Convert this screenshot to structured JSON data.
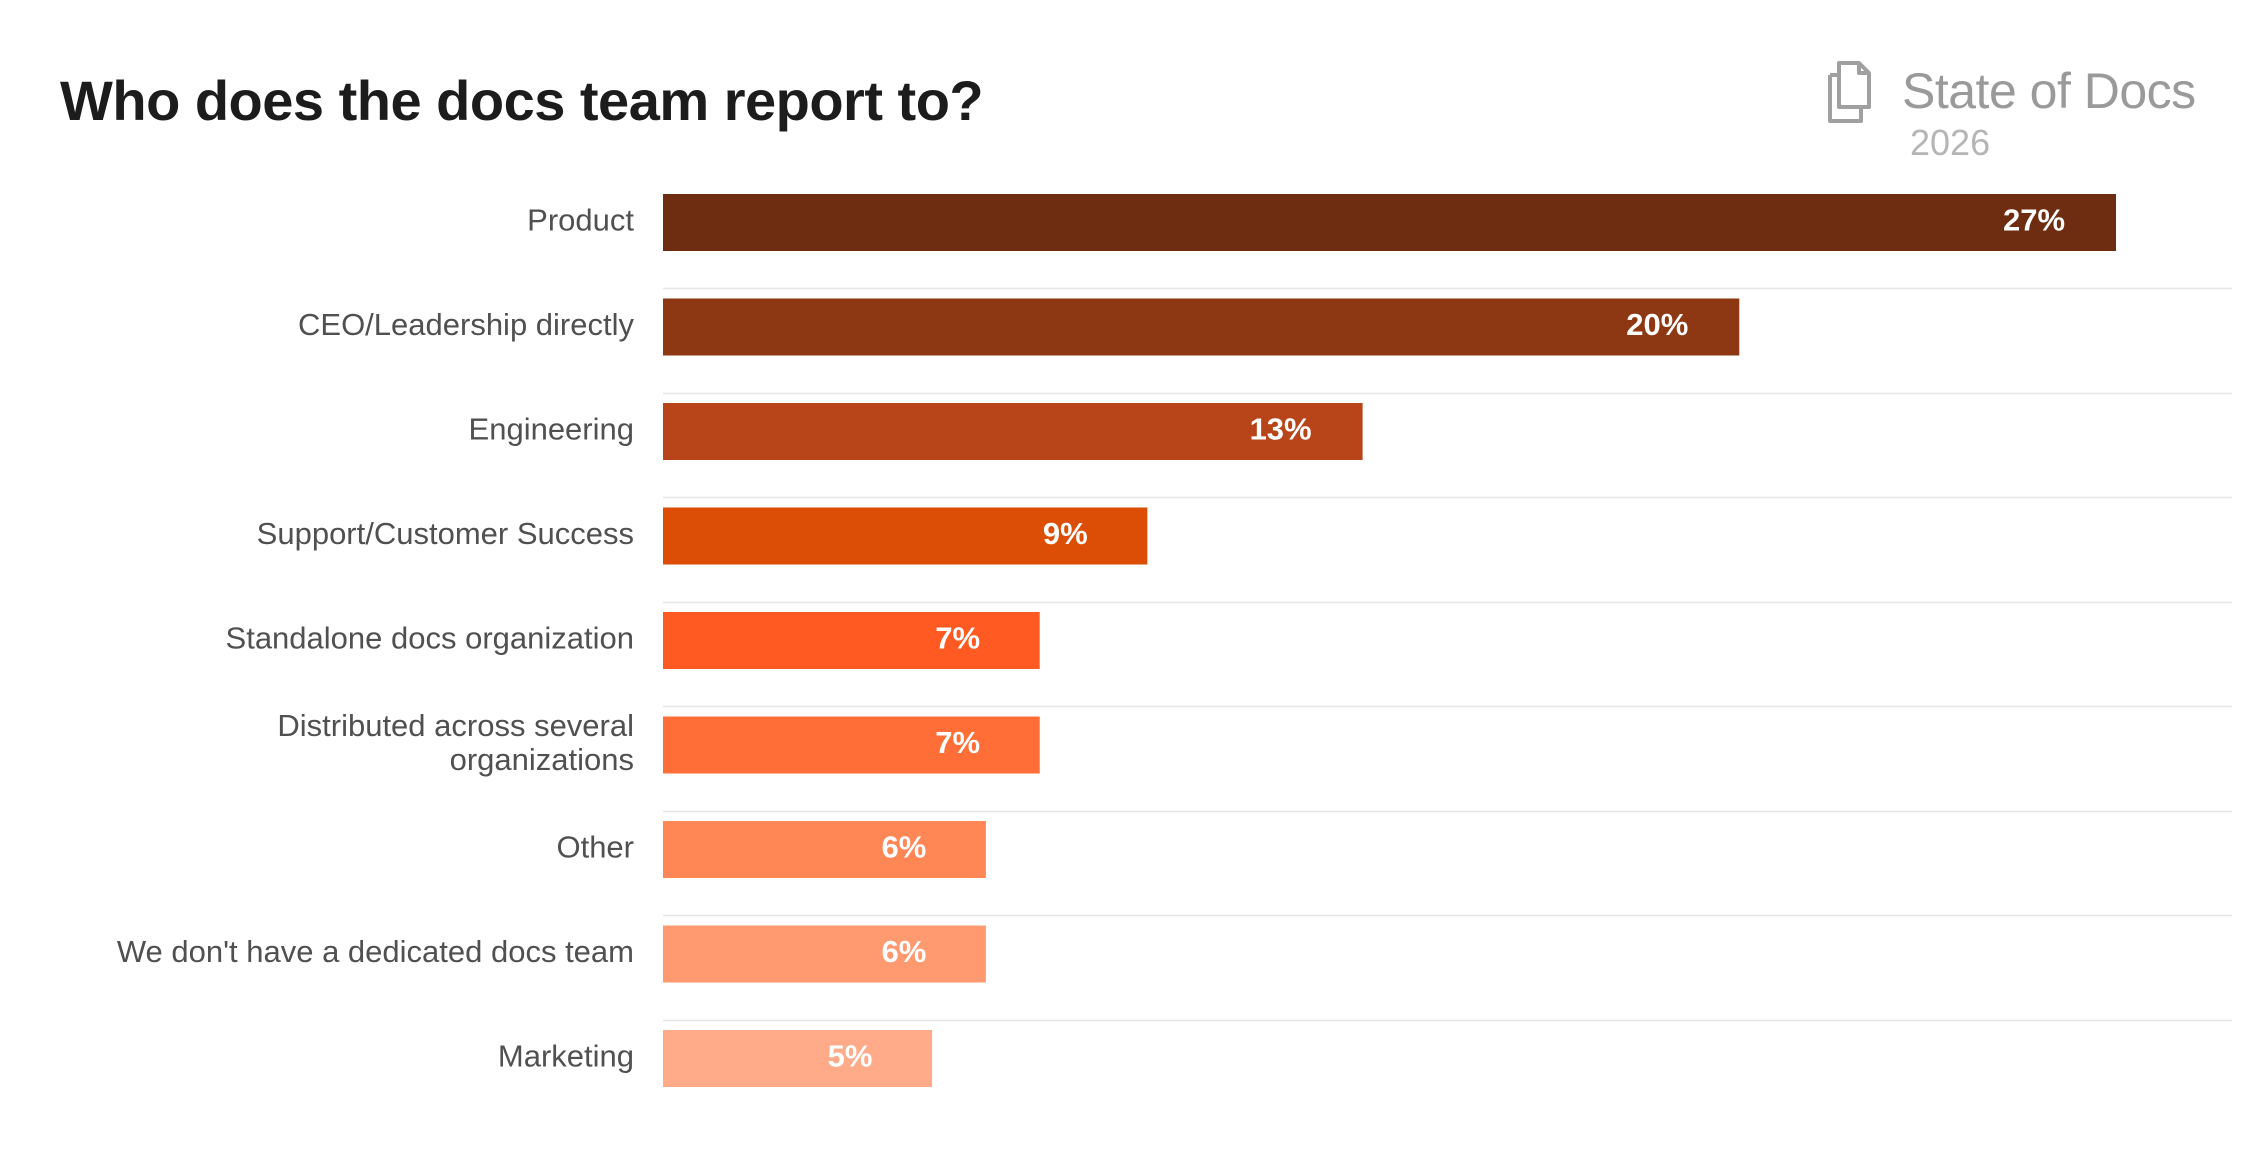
{
  "title": "Who does the docs team report to?",
  "brand": {
    "name": "State of Docs",
    "year": "2026",
    "icon": "documents-icon"
  },
  "chart_data": {
    "type": "bar",
    "orientation": "horizontal",
    "title": "Who does the docs team report to?",
    "xlabel": "",
    "ylabel": "",
    "xlim": [
      0,
      29
    ],
    "grid": false,
    "legend": "none",
    "unit": "%",
    "categories": [
      "Product",
      "CEO/Leadership directly",
      "Engineering",
      "Support/Customer Success",
      "Standalone docs organization",
      "Distributed across several organizations",
      "Other",
      "We don't have a dedicated docs team",
      "Marketing"
    ],
    "category_lines": [
      [
        "Product"
      ],
      [
        "CEO/Leadership directly"
      ],
      [
        "Engineering"
      ],
      [
        "Support/Customer Success"
      ],
      [
        "Standalone docs organization"
      ],
      [
        "Distributed across several",
        "organizations"
      ],
      [
        "Other"
      ],
      [
        "We don't have a dedicated docs team"
      ],
      [
        "Marketing"
      ]
    ],
    "values": [
      27,
      20,
      13,
      9,
      7,
      7,
      6,
      6,
      5
    ],
    "value_labels": [
      "27%",
      "20%",
      "13%",
      "9%",
      "7%",
      "7%",
      "6%",
      "6%",
      "5%"
    ],
    "colors": [
      "#6e2c11",
      "#8e3813",
      "#b74519",
      "#dc4d05",
      "#ff5a22",
      "#ff6e36",
      "#ff8655",
      "#ff9a70",
      "#ffaa88"
    ]
  }
}
